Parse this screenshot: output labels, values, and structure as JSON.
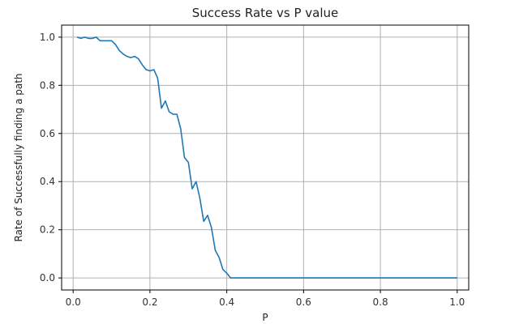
{
  "chart_data": {
    "type": "line",
    "title": "Success Rate vs P value",
    "xlabel": "P",
    "ylabel": "Rate of Successfully finding a path",
    "xlim": [
      -0.03,
      1.03
    ],
    "ylim": [
      -0.05,
      1.05
    ],
    "grid": true,
    "x_ticks": [
      0.0,
      0.2,
      0.4,
      0.6,
      0.8,
      1.0
    ],
    "x_tick_labels": [
      "0.0",
      "0.2",
      "0.4",
      "0.6",
      "0.8",
      "1.0"
    ],
    "y_ticks": [
      0.0,
      0.2,
      0.4,
      0.6,
      0.8,
      1.0
    ],
    "y_tick_labels": [
      "0.0",
      "0.2",
      "0.4",
      "0.6",
      "0.8",
      "1.0"
    ],
    "series": [
      {
        "color": "#1f77b4",
        "x": [
          0.01,
          0.02,
          0.03,
          0.04,
          0.05,
          0.06,
          0.07,
          0.08,
          0.09,
          0.1,
          0.11,
          0.12,
          0.13,
          0.14,
          0.15,
          0.16,
          0.17,
          0.18,
          0.19,
          0.2,
          0.21,
          0.22,
          0.23,
          0.24,
          0.25,
          0.26,
          0.27,
          0.28,
          0.29,
          0.3,
          0.31,
          0.32,
          0.33,
          0.34,
          0.35,
          0.36,
          0.37,
          0.38,
          0.39,
          0.4,
          0.41,
          0.45,
          0.5,
          0.6,
          0.7,
          0.8,
          0.9,
          1.0
        ],
        "y": [
          1.0,
          0.995,
          1.0,
          0.995,
          0.995,
          1.0,
          0.985,
          0.985,
          0.985,
          0.985,
          0.97,
          0.945,
          0.93,
          0.92,
          0.915,
          0.92,
          0.91,
          0.885,
          0.865,
          0.86,
          0.865,
          0.83,
          0.705,
          0.735,
          0.69,
          0.68,
          0.68,
          0.62,
          0.5,
          0.48,
          0.37,
          0.4,
          0.33,
          0.235,
          0.26,
          0.21,
          0.115,
          0.085,
          0.035,
          0.02,
          0.0,
          0.0,
          0.0,
          0.0,
          0.0,
          0.0,
          0.0,
          0.0
        ]
      }
    ]
  }
}
